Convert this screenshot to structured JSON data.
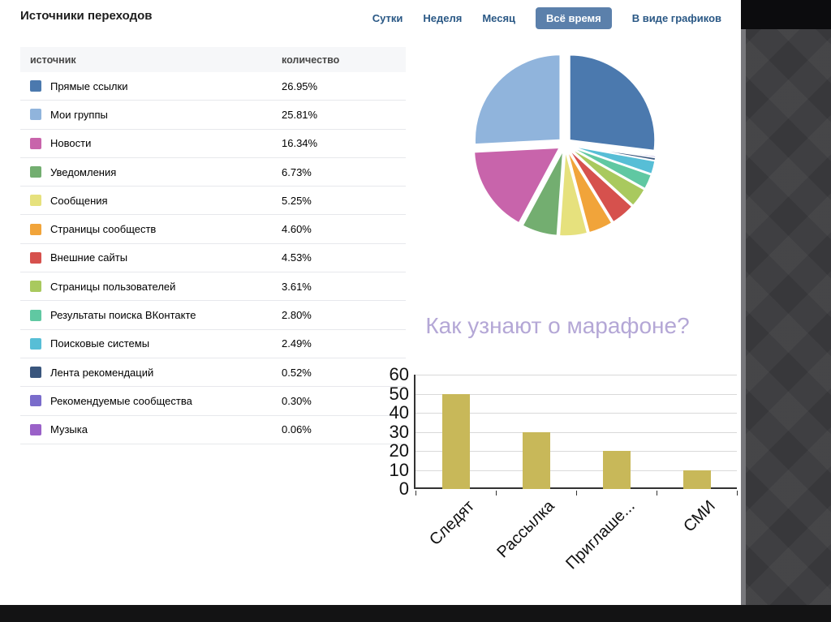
{
  "header": {
    "title": "Источники переходов"
  },
  "tabs": [
    {
      "name": "tab-day",
      "label": "Сутки",
      "active": false
    },
    {
      "name": "tab-week",
      "label": "Неделя",
      "active": false
    },
    {
      "name": "tab-month",
      "label": "Месяц",
      "active": false
    },
    {
      "name": "tab-all-time",
      "label": "Всё время",
      "active": true
    },
    {
      "name": "tab-as-charts",
      "label": "В виде графиков",
      "active": false
    }
  ],
  "table": {
    "headers": [
      "источник",
      "количество"
    ],
    "rows": [
      {
        "label": "Прямые ссылки",
        "value": "26.95%",
        "color": "#4b79ae"
      },
      {
        "label": "Мои группы",
        "value": "25.81%",
        "color": "#90b4dc"
      },
      {
        "label": "Новости",
        "value": "16.34%",
        "color": "#c864ab"
      },
      {
        "label": "Уведомления",
        "value": "6.73%",
        "color": "#73ae70"
      },
      {
        "label": "Сообщения",
        "value": "5.25%",
        "color": "#e6e17d"
      },
      {
        "label": "Страницы сообществ",
        "value": "4.60%",
        "color": "#f1a43a"
      },
      {
        "label": "Внешние сайты",
        "value": "4.53%",
        "color": "#d6514d"
      },
      {
        "label": "Страницы пользователей",
        "value": "3.61%",
        "color": "#a9c95e"
      },
      {
        "label": "Результаты поиска ВКонтакте",
        "value": "2.80%",
        "color": "#60c8a2"
      },
      {
        "label": "Поисковые системы",
        "value": "2.49%",
        "color": "#57bed6"
      },
      {
        "label": "Лента рекомендаций",
        "value": "0.52%",
        "color": "#3a567d"
      },
      {
        "label": "Рекомендуемые сообщества",
        "value": "0.30%",
        "color": "#7a6ccb"
      },
      {
        "label": "Музыка",
        "value": "0.06%",
        "color": "#9a61c8"
      }
    ]
  },
  "chart_data": [
    {
      "type": "pie",
      "title": "Источники переходов",
      "unit": "%",
      "exploded": true,
      "categories": [
        "Прямые ссылки",
        "Мои группы",
        "Новости",
        "Уведомления",
        "Сообщения",
        "Страницы сообществ",
        "Внешние сайты",
        "Страницы пользователей",
        "Результаты поиска ВКонтакте",
        "Поисковые системы",
        "Лента рекомендаций",
        "Рекомендуемые сообщества",
        "Музыка"
      ],
      "values": [
        26.95,
        25.81,
        16.34,
        6.73,
        5.25,
        4.6,
        4.53,
        3.61,
        2.8,
        2.49,
        0.52,
        0.3,
        0.06
      ],
      "colors": [
        "#4b79ae",
        "#90b4dc",
        "#c864ab",
        "#73ae70",
        "#e6e17d",
        "#f1a43a",
        "#d6514d",
        "#a9c95e",
        "#60c8a2",
        "#57bed6",
        "#3a567d",
        "#7a6ccb",
        "#9a61c8"
      ],
      "draw_order_clockwise_from_top": [
        0,
        12,
        11,
        10,
        9,
        8,
        7,
        6,
        5,
        4,
        3,
        2,
        1
      ]
    },
    {
      "type": "bar",
      "title": "Как узнают о марафоне?",
      "title_color": "#b4a7d6",
      "categories": [
        "Следят",
        "Рассылка",
        "Приглаше...",
        "СМИ"
      ],
      "values": [
        50,
        30,
        20,
        10
      ],
      "ylim": [
        0,
        60
      ],
      "yticks": [
        0,
        10,
        20,
        30,
        40,
        50,
        60
      ],
      "bar_color": "#c8b859",
      "grid": true,
      "legend_position": "none",
      "xlabel": "",
      "ylabel": ""
    }
  ]
}
